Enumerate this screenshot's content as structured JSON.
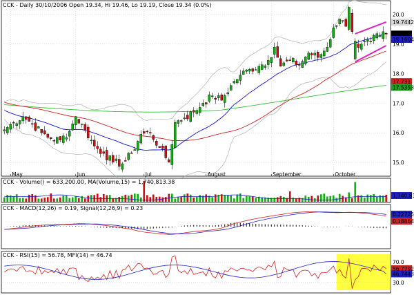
{
  "header": {
    "symbol": "CCK",
    "title": "CCK - Daily 30/10/2006 Open 19.34, Hi 19.46, Lo 19.19, Close 19.34 (0.0%)"
  },
  "colors": {
    "up": "#10b010",
    "down": "#d01010",
    "bb": "#b0b0b0",
    "ma20": "#1010d0",
    "ma50": "#d02020",
    "ma200": "#30c030",
    "trend": "#e020c0",
    "grid": "#c8c8c8",
    "price_tag": "#20a020",
    "highlight": "#ffff40"
  },
  "chart_data": [
    {
      "type": "candlestick",
      "panel": "price",
      "ylim": [
        14.6,
        20.4
      ],
      "y_ticks": [
        15.0,
        16.0,
        17.0,
        18.0,
        19.0,
        20.0
      ],
      "x_labels": [
        "May",
        "Jun",
        "Jul",
        "August",
        "September",
        "October"
      ],
      "x_label_index": [
        2,
        23,
        45,
        65,
        86,
        106
      ],
      "series_start": 40.0,
      "anchors": [
        [
          0,
          16.1
        ],
        [
          3,
          16.35
        ],
        [
          6,
          16.55
        ],
        [
          9,
          16.3
        ],
        [
          12,
          16.0
        ],
        [
          15,
          15.8
        ],
        [
          18,
          15.75
        ],
        [
          21,
          16.05
        ],
        [
          23,
          16.55
        ],
        [
          26,
          16.1
        ],
        [
          29,
          15.55
        ],
        [
          32,
          15.3
        ],
        [
          35,
          15.0
        ],
        [
          38,
          14.95
        ],
        [
          41,
          15.3
        ],
        [
          44,
          15.95
        ],
        [
          47,
          16.0
        ],
        [
          50,
          15.5
        ],
        [
          53,
          15.0
        ],
        [
          55,
          16.35
        ],
        [
          58,
          16.5
        ],
        [
          61,
          16.7
        ],
        [
          64,
          17.0
        ],
        [
          67,
          17.25
        ],
        [
          70,
          17.1
        ],
        [
          73,
          17.6
        ],
        [
          76,
          17.95
        ],
        [
          79,
          18.15
        ],
        [
          82,
          18.25
        ],
        [
          85,
          18.45
        ],
        [
          87,
          18.9
        ],
        [
          89,
          18.25
        ],
        [
          92,
          18.45
        ],
        [
          95,
          18.3
        ],
        [
          98,
          18.7
        ],
        [
          101,
          18.55
        ],
        [
          104,
          18.9
        ],
        [
          106,
          19.55
        ],
        [
          108,
          19.85
        ],
        [
          110,
          19.6
        ],
        [
          111,
          20.15
        ],
        [
          113,
          18.9
        ],
        [
          115,
          19.0
        ],
        [
          118,
          19.1
        ],
        [
          121,
          19.3
        ],
        [
          123,
          19.34
        ]
      ],
      "bb_upper": 19.7442,
      "ma20": 19.1604,
      "ma50": 17.731,
      "ma200": 17.5353,
      "last_close": 19.34,
      "annotations": [
        "pink upper trend line",
        "pink lower trend line"
      ]
    },
    {
      "type": "bar",
      "panel": "volume",
      "title": "CCK - Volume() = 633,200.00, MA(Volume,15) = 1,740,813.38",
      "ma15": 1740813.38,
      "last": 633200.0
    },
    {
      "type": "line",
      "panel": "macd",
      "title": "CCK - MACD(12,26) = 0.19, Signal(12,26,9) = 0.23",
      "macd": 0.19,
      "signal": 0.23,
      "tags": [
        "0.22725",
        "0.18864"
      ]
    },
    {
      "type": "line",
      "panel": "rsi_mfi",
      "title": "CCK - RSI(15) = 56.78, MFI(14) = 46.74",
      "rsi": 56.78,
      "mfi": 46.74,
      "levels": [
        30.0,
        70.0
      ],
      "tags": [
        "56.7792",
        "46.7443"
      ]
    }
  ],
  "price_tags": [
    "20.0",
    "19.7442",
    "19.34",
    "19.1604",
    "19.0",
    "18.0",
    "17.731",
    "17.5353",
    "17.0",
    "16.0",
    "15.0"
  ],
  "osc_ticks": [
    "70.0",
    "30.0"
  ],
  "volume_tag": "1,740,813"
}
